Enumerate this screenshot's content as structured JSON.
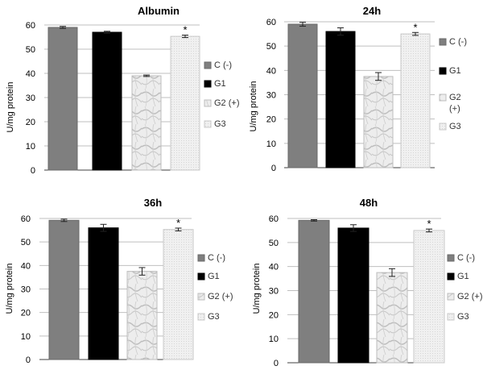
{
  "colors": {
    "C": "#7f7f7f",
    "G1": "#000000",
    "G2": "#e8e8e8",
    "G3": "#ececec",
    "grid": "#bfbfbf",
    "axis": "#404040",
    "text": "#000000"
  },
  "chart_data": [
    {
      "type": "bar",
      "title": "Albumin",
      "ylabel": "U/mg protein",
      "ylim": [
        0,
        60
      ],
      "yticks": [
        "0",
        "10",
        "20",
        "30",
        "40",
        "50",
        "60"
      ],
      "grid": true,
      "legend_position": "right",
      "categories": [
        "C (-)",
        "G1",
        "G2 (+)",
        "G3"
      ],
      "legend": [
        "C (-)",
        "G1",
        "G2 (+)",
        "G3"
      ],
      "values": [
        59.0,
        57.0,
        39.0,
        55.3
      ],
      "errors": [
        0.4,
        0.4,
        0.3,
        0.5
      ],
      "annotations": [
        "",
        "",
        "",
        "*"
      ]
    },
    {
      "type": "bar",
      "title": "24h",
      "ylabel": "U/mg protein",
      "ylim": [
        0,
        60
      ],
      "yticks": [
        "0",
        "10",
        "20",
        "30",
        "40",
        "50",
        "60"
      ],
      "grid": true,
      "legend_position": "right",
      "categories": [
        "C (-)",
        "G1",
        "G2 (+)",
        "G3"
      ],
      "legend": [
        "C (-)",
        "G1",
        "G2\n(+)",
        "G3"
      ],
      "values": [
        59.0,
        56.0,
        37.5,
        55.0
      ],
      "errors": [
        0.8,
        1.5,
        1.6,
        0.6
      ],
      "annotations": [
        "",
        "",
        "",
        "*"
      ]
    },
    {
      "type": "bar",
      "title": "36h",
      "ylabel": "U/mg protein",
      "ylim": [
        0,
        60
      ],
      "yticks": [
        "0",
        "10",
        "20",
        "30",
        "40",
        "50",
        "60"
      ],
      "grid": true,
      "legend_position": "right",
      "categories": [
        "C (-)",
        "G1",
        "G2 (+)",
        "G3"
      ],
      "legend": [
        "C (-)",
        "G1",
        "G2 (+)",
        "G3"
      ],
      "values": [
        59.2,
        56.0,
        37.5,
        55.3
      ],
      "errors": [
        0.5,
        1.5,
        1.6,
        0.6
      ],
      "annotations": [
        "",
        "",
        "",
        "*"
      ]
    },
    {
      "type": "bar",
      "title": "48h",
      "ylabel": "U/mg protein",
      "ylim": [
        0,
        60
      ],
      "yticks": [
        "0",
        "10",
        "20",
        "30",
        "40",
        "50",
        "60"
      ],
      "grid": true,
      "legend_position": "right",
      "categories": [
        "C (-)",
        "G1",
        "G2 (+)",
        "G3"
      ],
      "legend": [
        "C (-)",
        "G1",
        "G2 (+)",
        "G3"
      ],
      "values": [
        59.2,
        56.0,
        37.5,
        55.0
      ],
      "errors": [
        0.3,
        1.4,
        1.6,
        0.6
      ],
      "annotations": [
        "",
        "",
        "",
        "*"
      ]
    }
  ]
}
